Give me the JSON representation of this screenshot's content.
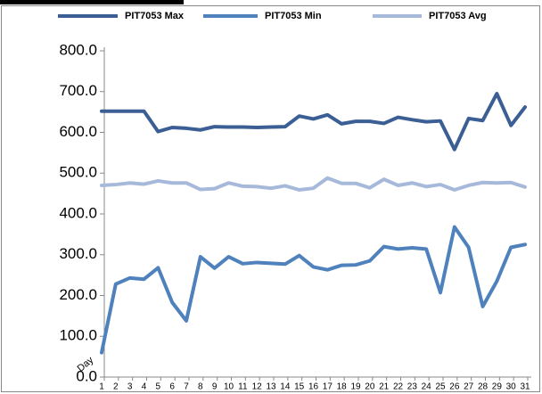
{
  "chart_data": {
    "type": "line",
    "x_label": "Day",
    "categories": [
      "1",
      "2",
      "3",
      "4",
      "5",
      "6",
      "7",
      "8",
      "9",
      "10",
      "11",
      "12",
      "13",
      "14",
      "15",
      "16",
      "17",
      "18",
      "19",
      "20",
      "21",
      "22",
      "23",
      "24",
      "25",
      "26",
      "27",
      "28",
      "29",
      "30",
      "31"
    ],
    "series": [
      {
        "name": "PIT7053 Max",
        "color": "#3b5f94",
        "values": [
          652,
          652,
          652,
          652,
          602,
          612,
          610,
          606,
          614,
          613,
          613,
          612,
          613,
          614,
          640,
          633,
          643,
          621,
          627,
          627,
          622,
          637,
          631,
          626,
          628,
          558,
          634,
          629,
          695,
          617,
          662
        ]
      },
      {
        "name": "PIT7053 Min",
        "color": "#4f81bd",
        "values": [
          60,
          228,
          243,
          240,
          268,
          183,
          138,
          295,
          267,
          295,
          278,
          281,
          279,
          277,
          298,
          270,
          263,
          274,
          275,
          285,
          320,
          314,
          317,
          314,
          207,
          368,
          318,
          173,
          235,
          318,
          325
        ]
      },
      {
        "name": "PIT7053 Avg",
        "color": "#a7b9db",
        "values": [
          470,
          472,
          476,
          473,
          481,
          476,
          476,
          460,
          462,
          476,
          468,
          467,
          463,
          469,
          459,
          463,
          488,
          475,
          475,
          464,
          485,
          470,
          476,
          467,
          472,
          459,
          470,
          477,
          476,
          477,
          466
        ]
      }
    ],
    "ylim": [
      0,
      800
    ],
    "yticks": [
      {
        "value": 0,
        "label": "0.0"
      },
      {
        "value": 100,
        "label": "100.0"
      },
      {
        "value": 200,
        "label": "200.0"
      },
      {
        "value": 300,
        "label": "300.0"
      },
      {
        "value": 400,
        "label": "400.0"
      },
      {
        "value": 500,
        "label": "500.0"
      },
      {
        "value": 600,
        "label": "600.0"
      },
      {
        "value": 700,
        "label": "700.0"
      },
      {
        "value": 800,
        "label": "800.0"
      }
    ],
    "grid": false,
    "legend": "top"
  }
}
